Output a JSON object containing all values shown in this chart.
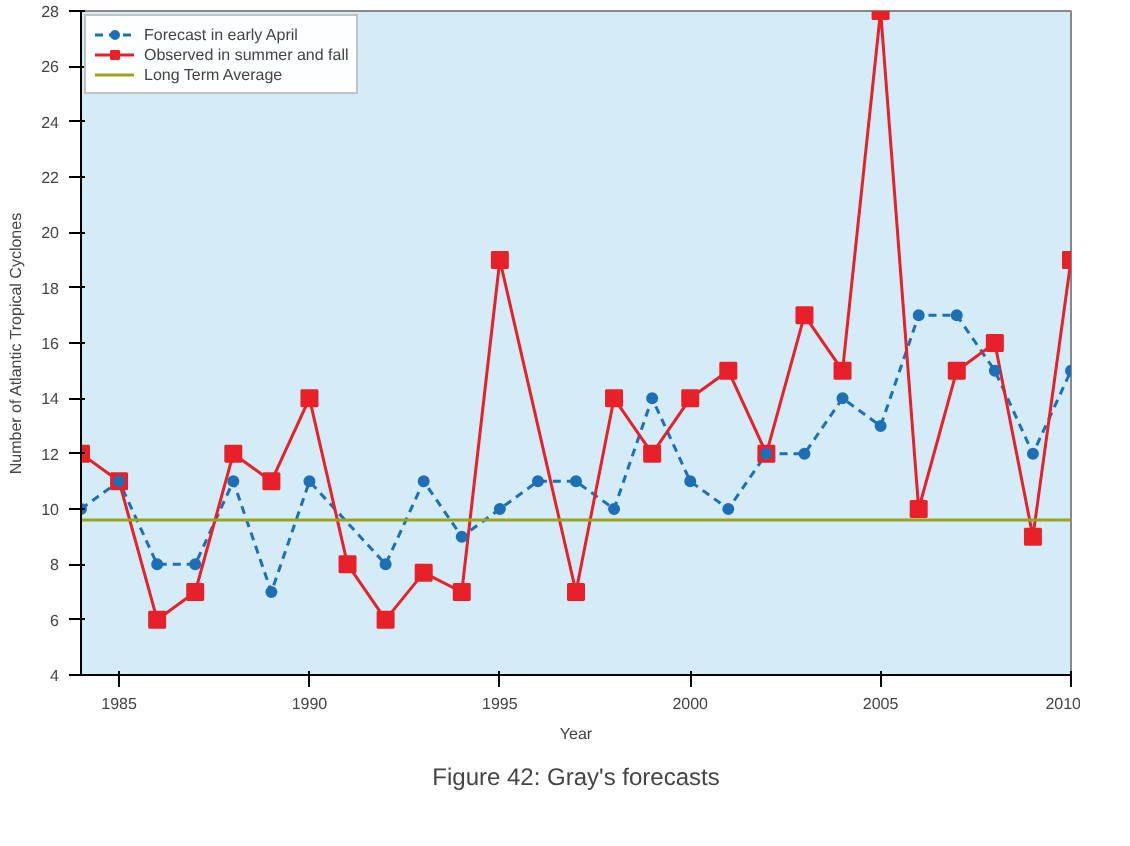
{
  "chart_data": {
    "type": "line",
    "xlabel": "Year",
    "ylabel": "Number of Atlantic Tropical Cyclones",
    "x": [
      1984,
      1985,
      1986,
      1987,
      1988,
      1989,
      1990,
      1991,
      1992,
      1993,
      1994,
      1995,
      1996,
      1997,
      1998,
      1999,
      2000,
      2001,
      2002,
      2003,
      2004,
      2005,
      2006,
      2007,
      2008,
      2009,
      2010
    ],
    "series": [
      {
        "name": "Forecast in early April",
        "color": "#1f6fb5",
        "marker": "circle",
        "line_style": "dashed",
        "values": [
          10,
          11,
          8,
          8,
          11,
          7,
          11,
          null,
          8,
          11,
          9,
          10,
          11,
          11,
          10,
          14,
          11,
          10,
          12,
          12,
          14,
          13,
          17,
          17,
          15,
          12,
          15
        ]
      },
      {
        "name": "Observed in summer and fall",
        "color": "#e8202a",
        "marker": "square",
        "line_style": "solid",
        "values": [
          12,
          11,
          6,
          7,
          12,
          11,
          14,
          8,
          6,
          7.7,
          7,
          19,
          null,
          7,
          14,
          12,
          14,
          15,
          12,
          17,
          15,
          28,
          10,
          15,
          16,
          9,
          19
        ]
      }
    ],
    "ref_lines": [
      {
        "axis": "y",
        "value": 9.6,
        "label": "Long Term Average",
        "color": "#9aa51e"
      }
    ],
    "xlim": [
      1984,
      2010
    ],
    "xticks": [
      1985,
      1990,
      1995,
      2000,
      2005,
      2010
    ],
    "ylim": [
      4,
      28
    ],
    "yticks": [
      4,
      6,
      8,
      10,
      12,
      14,
      16,
      18,
      20,
      22,
      24,
      26,
      28
    ],
    "grid": false,
    "legend": "top left",
    "annotations": [
      "Figure 42: Gray's forecasts"
    ]
  }
}
